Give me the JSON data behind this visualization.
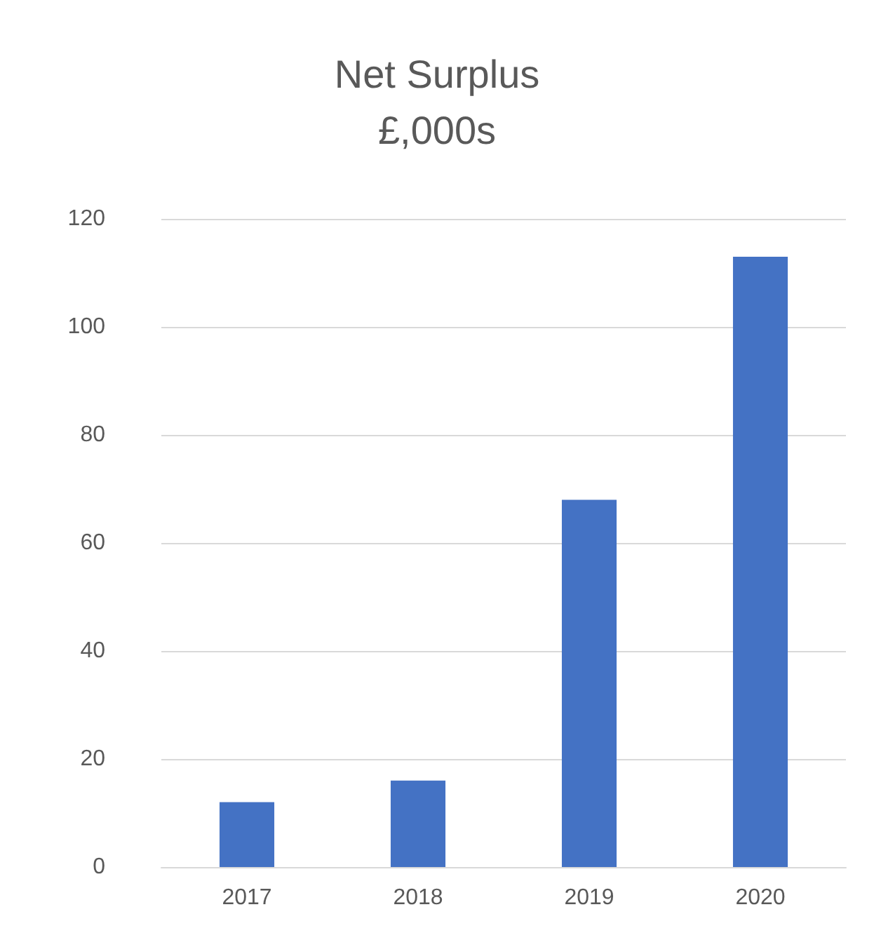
{
  "chart_data": {
    "type": "bar",
    "title": "Net Surplus",
    "subtitle": "£,000s",
    "categories": [
      "2017",
      "2018",
      "2019",
      "2020"
    ],
    "values": [
      12,
      16,
      68,
      113
    ],
    "color": "#4472c4",
    "ylim": [
      0,
      120
    ],
    "yticks": [
      0,
      20,
      40,
      60,
      80,
      100,
      120
    ],
    "grid": "y"
  }
}
